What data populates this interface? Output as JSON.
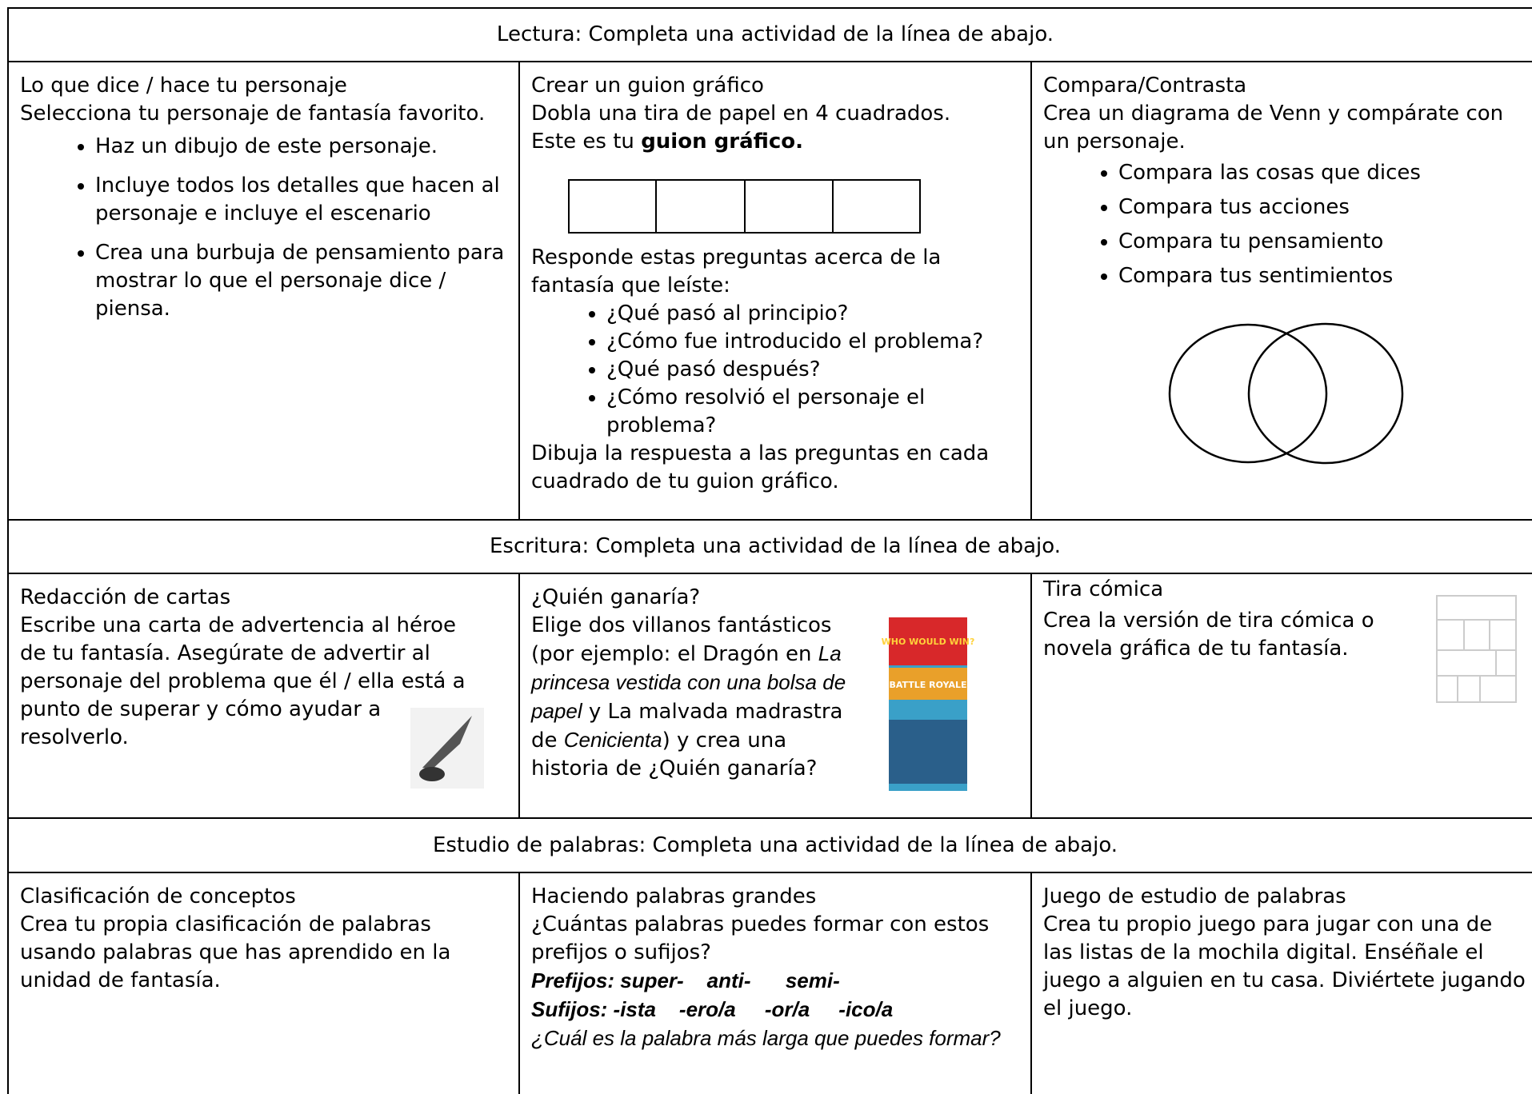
{
  "sections": [
    {
      "heading": "Lectura: Completa una actividad de la línea de abajo.",
      "cells": [
        {
          "title": "Lo que dice / hace tu personaje",
          "blocks": [
            {
              "p": [
                "Selecciona tu personaje de fantasía favorito."
              ]
            },
            {
              "ul": [
                "Haz un dibujo de este personaje.",
                "Incluye todos los detalles que hacen al personaje e incluye el escenario",
                "Crea una burbuja de pensamiento para mostrar lo que el personaje dice / piensa."
              ]
            }
          ]
        },
        {
          "title": "Crear un guion gráfico",
          "blocks": [
            {
              "p": [
                "Dobla una tira de papel en 4 cuadrados."
              ]
            },
            {
              "p": [
                "Este es tu ",
                {
                  "text": "guion gráfico.",
                  "style": "bold"
                }
              ]
            },
            {
              "p": [
                "Responde estas preguntas acerca de la fantasía que leíste:"
              ]
            },
            {
              "ul": [
                "¿Qué pasó al principio?",
                "¿Cómo fue introducido el problema?",
                "¿Qué pasó después?",
                "¿Cómo resolvió el personaje el problema?"
              ]
            },
            {
              "p": [
                "Dibuja la respuesta a las preguntas en cada cuadrado de tu guion gráfico."
              ]
            }
          ]
        },
        {
          "title": "Compara/Contrasta",
          "blocks": [
            {
              "p": [
                "Crea un diagrama de Venn y compárate con un personaje."
              ]
            },
            {
              "ul": [
                "Compara las cosas que dices",
                "Compara tus acciones",
                "Compara tu pensamiento",
                "Compara tus sentimientos"
              ]
            }
          ]
        }
      ]
    },
    {
      "heading": "Escritura: Completa una actividad de la línea de abajo.",
      "cells": [
        {
          "title": "Redacción de cartas",
          "blocks": [
            {
              "p": [
                "Escribe una carta de advertencia al héroe de tu fantasía. Asegúrate de advertir al personaje del problema que él / ella está a punto de superar y cómo ayudar a resolverlo."
              ]
            }
          ]
        },
        {
          "title": "¿Quién ganaría?",
          "blocks": [
            {
              "p": [
                "Elige dos villanos fantásticos (por ejemplo: el Dragón en ",
                {
                  "text": "La princesa vestida con una bolsa de papel",
                  "style": "italic"
                },
                " y La malvada madrastra de ",
                {
                  "text": "Cenicienta",
                  "style": "italic"
                },
                ") y crea una historia de ¿Quién ganaría?"
              ]
            }
          ]
        },
        {
          "title": "Tira cómica",
          "blocks": [
            {
              "p": [
                "Crea la versión de tira cómica o novela gráfica de tu fantasía."
              ]
            }
          ]
        }
      ]
    },
    {
      "heading": "Estudio de palabras: Completa una actividad de la línea de abajo.",
      "cells": [
        {
          "title": "Clasificación de conceptos",
          "blocks": [
            {
              "p": [
                "Crea tu propia clasificación de palabras usando palabras que has aprendido en la unidad de fantasía."
              ]
            }
          ]
        },
        {
          "title": "Haciendo palabras grandes",
          "blocks": [
            {
              "p": [
                "¿Cuántas palabras puedes formar con estos prefijos o sufijos?"
              ]
            },
            {
              "p": [
                {
                  "text": "Prefijos: super-    anti-      semi-",
                  "style": "bold-italic"
                }
              ]
            },
            {
              "p": [
                {
                  "text": "Sufijos: -ista    -ero/a     -or/a     -ico/a",
                  "style": "bold-italic"
                }
              ]
            },
            {
              "p": [
                {
                  "text": "¿Cuál es la palabra más larga que puedes formar?",
                  "style": "italic"
                }
              ]
            }
          ]
        },
        {
          "title": "Juego de estudio de palabras",
          "blocks": [
            {
              "p": [
                "Crea tu propio juego para jugar con una de las listas de la mochila digital. Enséñale el juego a alguien en tu casa. Diviértete jugando el juego."
              ]
            }
          ]
        }
      ]
    }
  ],
  "book_cover": [
    "WHO WOULD WIN?",
    "BATTLE ROYALE"
  ]
}
